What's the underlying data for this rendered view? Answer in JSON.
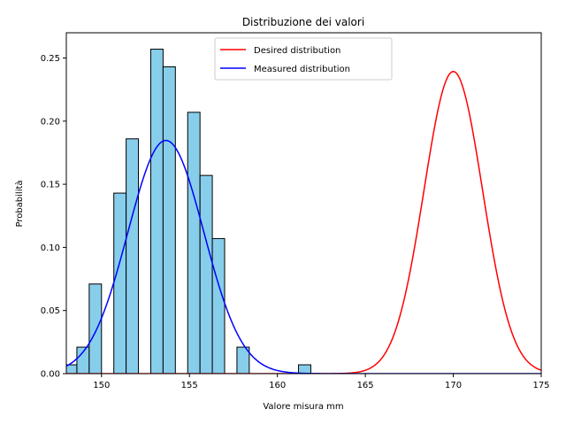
{
  "chart_data": {
    "type": "histogram-with-density",
    "title": "Distribuzione dei valori",
    "xlabel": "Valore misura mm",
    "ylabel": "Probabilità",
    "xlim": [
      148,
      175
    ],
    "ylim": [
      0,
      0.27
    ],
    "xticks": [
      150,
      155,
      160,
      165,
      170,
      175
    ],
    "yticks": [
      0.0,
      0.05,
      0.1,
      0.15,
      0.2,
      0.25
    ],
    "xtick_labels": [
      "150",
      "155",
      "160",
      "165",
      "170",
      "175"
    ],
    "ytick_labels": [
      "0.00",
      "0.05",
      "0.10",
      "0.15",
      "0.20",
      "0.25"
    ],
    "grid": false,
    "legend_position": "top-center",
    "histogram": {
      "color": "#87ceeb",
      "edge_color": "#000000",
      "bins": [
        {
          "x0": 147.9,
          "x1": 148.6,
          "value": 0.007
        },
        {
          "x0": 148.6,
          "x1": 149.3,
          "value": 0.021
        },
        {
          "x0": 149.3,
          "x1": 150.0,
          "value": 0.071
        },
        {
          "x0": 150.7,
          "x1": 151.4,
          "value": 0.143
        },
        {
          "x0": 151.4,
          "x1": 152.1,
          "value": 0.186
        },
        {
          "x0": 152.8,
          "x1": 153.5,
          "value": 0.257
        },
        {
          "x0": 153.5,
          "x1": 154.2,
          "value": 0.243
        },
        {
          "x0": 154.9,
          "x1": 155.6,
          "value": 0.207
        },
        {
          "x0": 155.6,
          "x1": 156.3,
          "value": 0.157
        },
        {
          "x0": 156.3,
          "x1": 157.0,
          "value": 0.107
        },
        {
          "x0": 157.7,
          "x1": 158.4,
          "value": 0.021
        },
        {
          "x0": 161.2,
          "x1": 161.9,
          "value": 0.007
        }
      ]
    },
    "series": [
      {
        "name": "Desired distribution",
        "color": "#ff0000",
        "mean": 170,
        "std": 1.667
      },
      {
        "name": "Measured distribution",
        "color": "#0000ff",
        "mean": 153.66,
        "std": 2.16
      }
    ]
  }
}
